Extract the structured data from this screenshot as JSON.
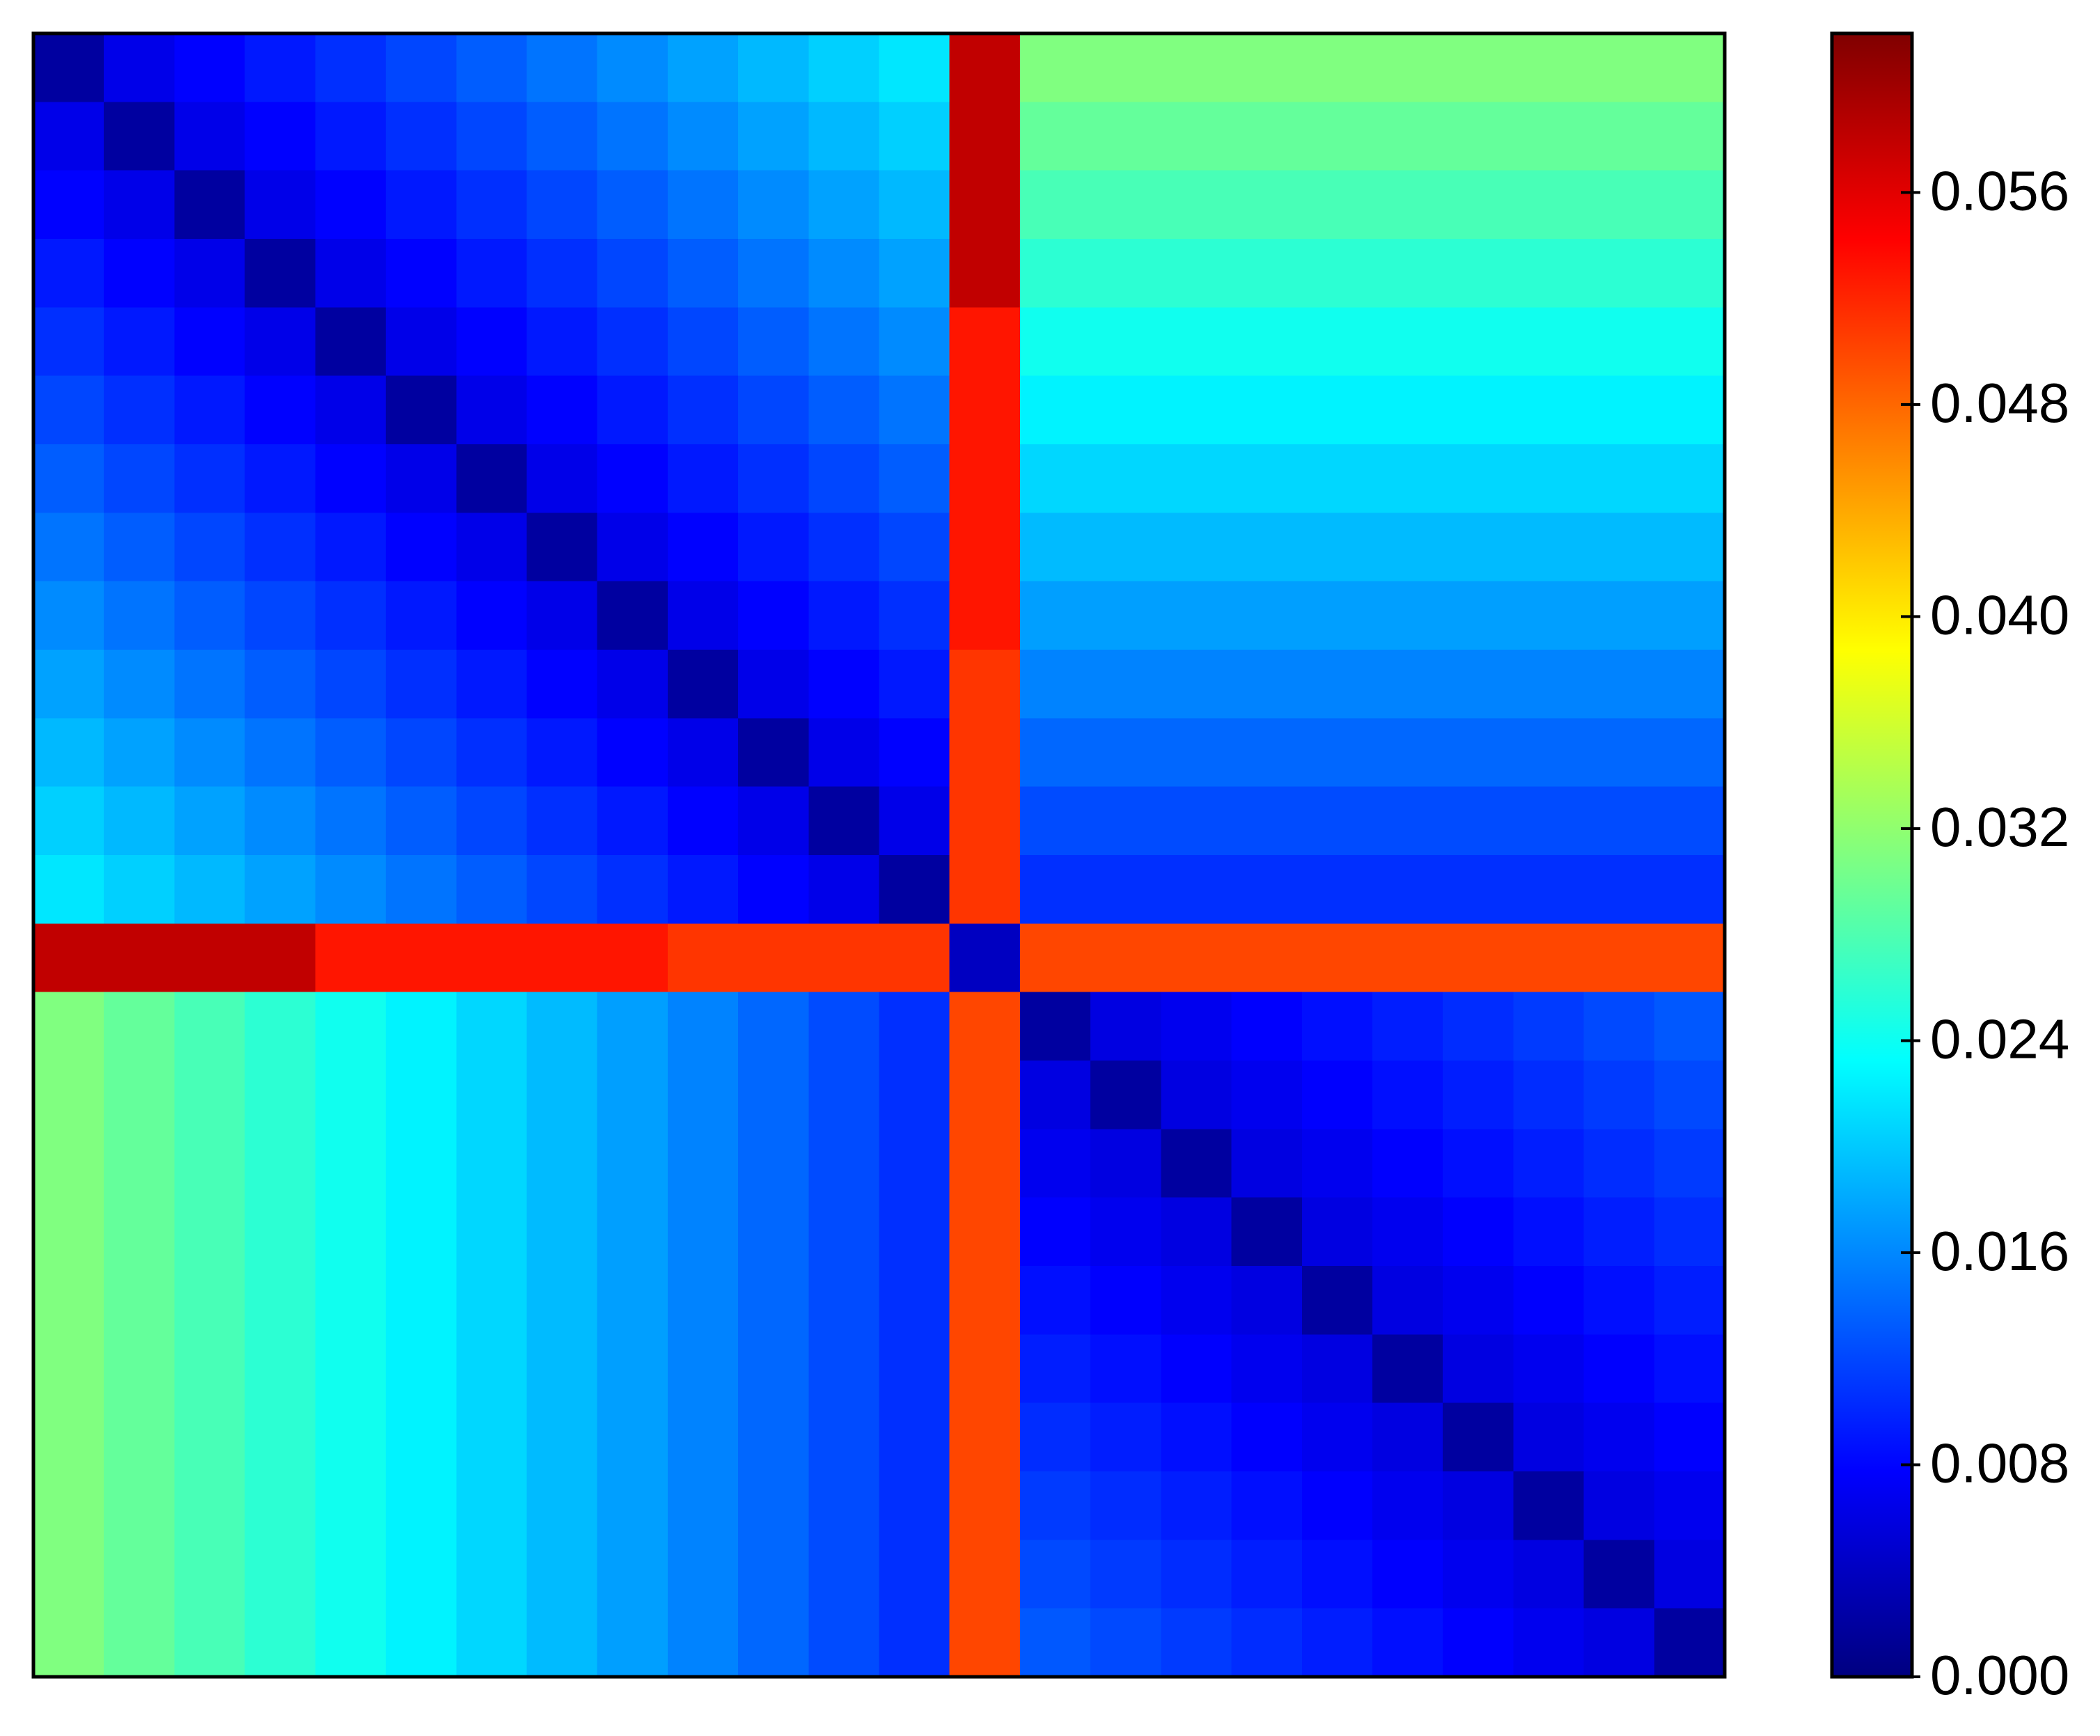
{
  "chart_data": {
    "type": "heatmap",
    "colormap": "jet",
    "zlim": [
      0,
      0.062
    ],
    "zticks": [
      {
        "value": 0,
        "label": "0.000"
      },
      0.008,
      0.016,
      0.024,
      0.032,
      {
        "value": 0.04,
        "label": "0.040"
      },
      0.048,
      0.056
    ],
    "z": [
      [
        0.002,
        0.0064,
        0.0078,
        0.0092,
        0.0106,
        0.012,
        0.0134,
        0.0148,
        0.0162,
        0.0176,
        0.019,
        0.0204,
        0.0218,
        0.058,
        0.031,
        0.031,
        0.031,
        0.031,
        0.031,
        0.031,
        0.031,
        0.031,
        0.031,
        0.031
      ],
      [
        0.0064,
        0.002,
        0.0064,
        0.0078,
        0.0092,
        0.0106,
        0.012,
        0.0134,
        0.0148,
        0.0162,
        0.0176,
        0.019,
        0.0204,
        0.058,
        0.0293,
        0.0293,
        0.0293,
        0.0293,
        0.0293,
        0.0293,
        0.0293,
        0.0293,
        0.0293,
        0.0293
      ],
      [
        0.0078,
        0.0064,
        0.002,
        0.0064,
        0.0078,
        0.0092,
        0.0106,
        0.012,
        0.0134,
        0.0148,
        0.0162,
        0.0176,
        0.019,
        0.058,
        0.0276,
        0.0276,
        0.0276,
        0.0276,
        0.0276,
        0.0276,
        0.0276,
        0.0276,
        0.0276,
        0.0276
      ],
      [
        0.0092,
        0.0078,
        0.0064,
        0.002,
        0.0064,
        0.0078,
        0.0092,
        0.0106,
        0.012,
        0.0134,
        0.0148,
        0.0162,
        0.0176,
        0.058,
        0.0259,
        0.0259,
        0.0259,
        0.0259,
        0.0259,
        0.0259,
        0.0259,
        0.0259,
        0.0259,
        0.0259
      ],
      [
        0.0106,
        0.0092,
        0.0078,
        0.0064,
        0.002,
        0.0064,
        0.0078,
        0.0092,
        0.0106,
        0.012,
        0.0134,
        0.0148,
        0.0162,
        0.053,
        0.0242,
        0.0242,
        0.0242,
        0.0242,
        0.0242,
        0.0242,
        0.0242,
        0.0242,
        0.0242,
        0.0242
      ],
      [
        0.012,
        0.0106,
        0.0092,
        0.0078,
        0.0064,
        0.002,
        0.0064,
        0.0078,
        0.0092,
        0.0106,
        0.012,
        0.0134,
        0.0148,
        0.053,
        0.0225,
        0.0225,
        0.0225,
        0.0225,
        0.0225,
        0.0225,
        0.0225,
        0.0225,
        0.0225,
        0.0225
      ],
      [
        0.0134,
        0.012,
        0.0106,
        0.0092,
        0.0078,
        0.0064,
        0.002,
        0.0064,
        0.0078,
        0.0092,
        0.0106,
        0.012,
        0.0134,
        0.053,
        0.0208,
        0.0208,
        0.0208,
        0.0208,
        0.0208,
        0.0208,
        0.0208,
        0.0208,
        0.0208,
        0.0208
      ],
      [
        0.0148,
        0.0134,
        0.012,
        0.0106,
        0.0092,
        0.0078,
        0.0064,
        0.002,
        0.0064,
        0.0078,
        0.0092,
        0.0106,
        0.012,
        0.053,
        0.0191,
        0.0191,
        0.0191,
        0.0191,
        0.0191,
        0.0191,
        0.0191,
        0.0191,
        0.0191,
        0.0191
      ],
      [
        0.0162,
        0.0148,
        0.0134,
        0.012,
        0.0106,
        0.0092,
        0.0078,
        0.0064,
        0.002,
        0.0064,
        0.0078,
        0.0092,
        0.0106,
        0.053,
        0.0174,
        0.0174,
        0.0174,
        0.0174,
        0.0174,
        0.0174,
        0.0174,
        0.0174,
        0.0174,
        0.0174
      ],
      [
        0.0176,
        0.0162,
        0.0148,
        0.0134,
        0.012,
        0.0106,
        0.0092,
        0.0078,
        0.0064,
        0.002,
        0.0064,
        0.0078,
        0.0092,
        0.051,
        0.0157,
        0.0157,
        0.0157,
        0.0157,
        0.0157,
        0.0157,
        0.0157,
        0.0157,
        0.0157,
        0.0157
      ],
      [
        0.019,
        0.0176,
        0.0162,
        0.0148,
        0.0134,
        0.012,
        0.0106,
        0.0092,
        0.0078,
        0.0064,
        0.002,
        0.0064,
        0.0078,
        0.051,
        0.014,
        0.014,
        0.014,
        0.014,
        0.014,
        0.014,
        0.014,
        0.014,
        0.014,
        0.014
      ],
      [
        0.0204,
        0.019,
        0.0176,
        0.0162,
        0.0148,
        0.0134,
        0.012,
        0.0106,
        0.0092,
        0.0078,
        0.0064,
        0.002,
        0.0064,
        0.051,
        0.0123,
        0.0123,
        0.0123,
        0.0123,
        0.0123,
        0.0123,
        0.0123,
        0.0123,
        0.0123,
        0.0123
      ],
      [
        0.0218,
        0.0204,
        0.019,
        0.0176,
        0.0162,
        0.0148,
        0.0134,
        0.012,
        0.0106,
        0.0092,
        0.0078,
        0.0064,
        0.002,
        0.051,
        0.0106,
        0.0106,
        0.0106,
        0.0106,
        0.0106,
        0.0106,
        0.0106,
        0.0106,
        0.0106,
        0.0106
      ],
      [
        0.058,
        0.058,
        0.058,
        0.058,
        0.053,
        0.053,
        0.053,
        0.053,
        0.053,
        0.051,
        0.051,
        0.051,
        0.051,
        0.004,
        0.05,
        0.05,
        0.05,
        0.05,
        0.05,
        0.05,
        0.05,
        0.05,
        0.05,
        0.05
      ],
      [
        0.031,
        0.0293,
        0.0276,
        0.0259,
        0.0242,
        0.0225,
        0.0208,
        0.0191,
        0.0174,
        0.0157,
        0.014,
        0.0123,
        0.0106,
        0.05,
        0.002,
        0.0059,
        0.0068,
        0.0077,
        0.0086,
        0.0095,
        0.0104,
        0.0113,
        0.0122,
        0.0131
      ],
      [
        0.031,
        0.0293,
        0.0276,
        0.0259,
        0.0242,
        0.0225,
        0.0208,
        0.0191,
        0.0174,
        0.0157,
        0.014,
        0.0123,
        0.0106,
        0.05,
        0.0059,
        0.002,
        0.0059,
        0.0068,
        0.0077,
        0.0086,
        0.0095,
        0.0104,
        0.0113,
        0.0122
      ],
      [
        0.031,
        0.0293,
        0.0276,
        0.0259,
        0.0242,
        0.0225,
        0.0208,
        0.0191,
        0.0174,
        0.0157,
        0.014,
        0.0123,
        0.0106,
        0.05,
        0.0068,
        0.0059,
        0.002,
        0.0059,
        0.0068,
        0.0077,
        0.0086,
        0.0095,
        0.0104,
        0.0113
      ],
      [
        0.031,
        0.0293,
        0.0276,
        0.0259,
        0.0242,
        0.0225,
        0.0208,
        0.0191,
        0.0174,
        0.0157,
        0.014,
        0.0123,
        0.0106,
        0.05,
        0.0077,
        0.0068,
        0.0059,
        0.002,
        0.0059,
        0.0068,
        0.0077,
        0.0086,
        0.0095,
        0.0104
      ],
      [
        0.031,
        0.0293,
        0.0276,
        0.0259,
        0.0242,
        0.0225,
        0.0208,
        0.0191,
        0.0174,
        0.0157,
        0.014,
        0.0123,
        0.0106,
        0.05,
        0.0086,
        0.0077,
        0.0068,
        0.0059,
        0.002,
        0.0059,
        0.0068,
        0.0077,
        0.0086,
        0.0095
      ],
      [
        0.031,
        0.0293,
        0.0276,
        0.0259,
        0.0242,
        0.0225,
        0.0208,
        0.0191,
        0.0174,
        0.0157,
        0.014,
        0.0123,
        0.0106,
        0.05,
        0.0095,
        0.0086,
        0.0077,
        0.0068,
        0.0059,
        0.002,
        0.0059,
        0.0068,
        0.0077,
        0.0086
      ],
      [
        0.031,
        0.0293,
        0.0276,
        0.0259,
        0.0242,
        0.0225,
        0.0208,
        0.0191,
        0.0174,
        0.0157,
        0.014,
        0.0123,
        0.0106,
        0.05,
        0.0104,
        0.0095,
        0.0086,
        0.0077,
        0.0068,
        0.0059,
        0.002,
        0.0059,
        0.0068,
        0.0077
      ],
      [
        0.031,
        0.0293,
        0.0276,
        0.0259,
        0.0242,
        0.0225,
        0.0208,
        0.0191,
        0.0174,
        0.0157,
        0.014,
        0.0123,
        0.0106,
        0.05,
        0.0113,
        0.0104,
        0.0095,
        0.0086,
        0.0077,
        0.0068,
        0.0059,
        0.002,
        0.0059,
        0.0068
      ],
      [
        0.031,
        0.0293,
        0.0276,
        0.0259,
        0.0242,
        0.0225,
        0.0208,
        0.0191,
        0.0174,
        0.0157,
        0.014,
        0.0123,
        0.0106,
        0.05,
        0.0122,
        0.0113,
        0.0104,
        0.0095,
        0.0086,
        0.0077,
        0.0068,
        0.0059,
        0.002,
        0.0059
      ],
      [
        0.031,
        0.0293,
        0.0276,
        0.0259,
        0.0242,
        0.0225,
        0.0208,
        0.0191,
        0.0174,
        0.0157,
        0.014,
        0.0123,
        0.0106,
        0.05,
        0.0131,
        0.0122,
        0.0113,
        0.0104,
        0.0095,
        0.0086,
        0.0077,
        0.0068,
        0.0059,
        0.002
      ]
    ]
  }
}
